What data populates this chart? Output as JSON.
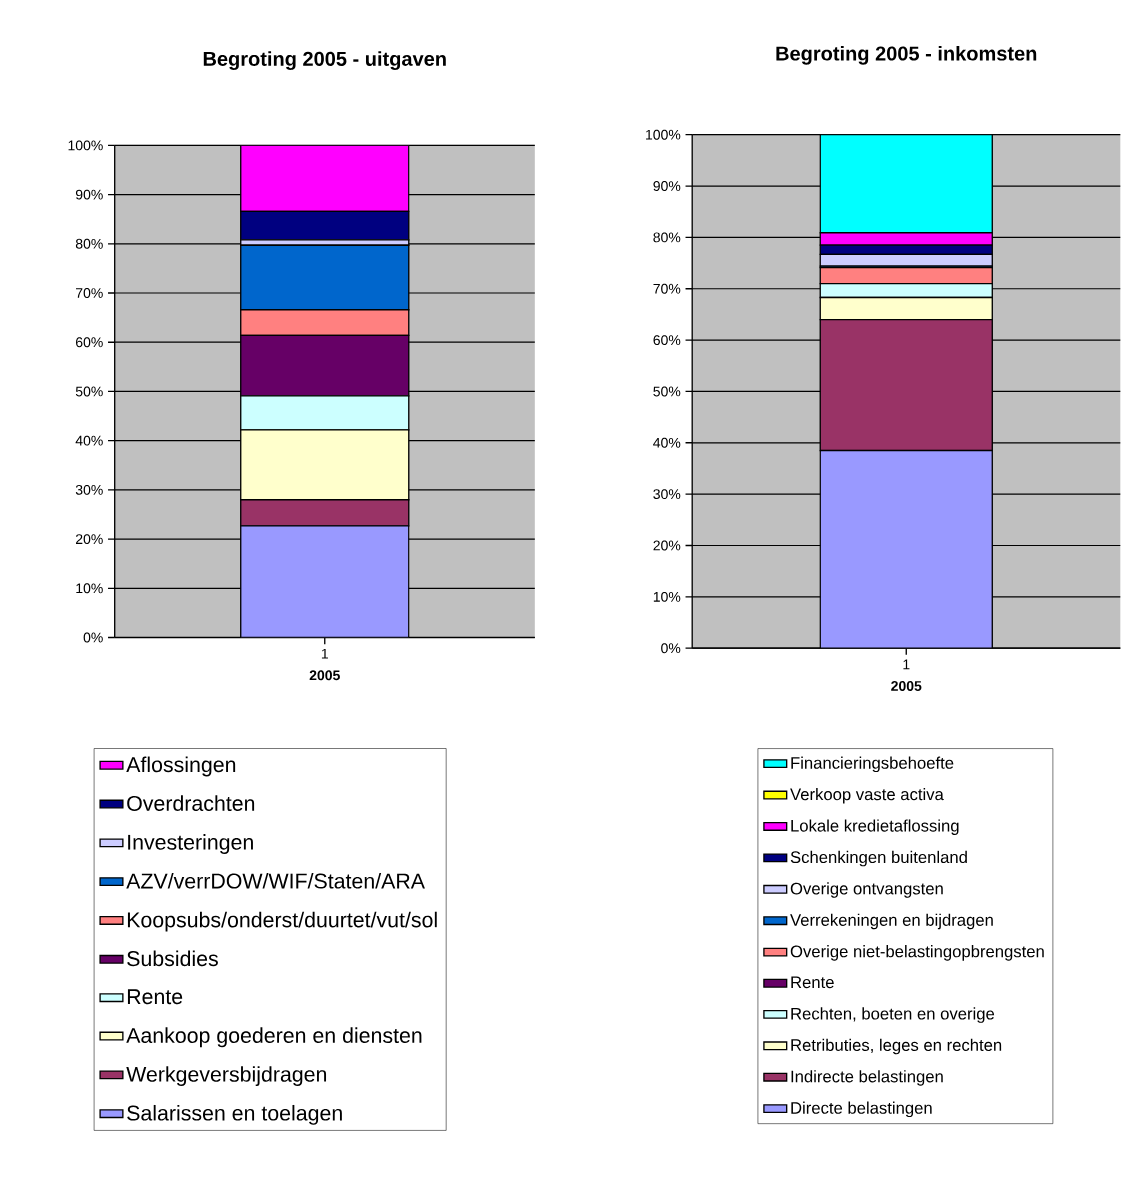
{
  "chart_data": [
    {
      "type": "bar",
      "title": "Begroting 2005 - uitgaven",
      "xlabel": "2005",
      "categories": [
        "1"
      ],
      "stacked": true,
      "grid": "y",
      "legend": "bottom",
      "ylim": [
        0,
        100
      ],
      "yticks": [
        {
          "value": 0,
          "label": "0%"
        },
        {
          "value": 10,
          "label": "10%"
        },
        {
          "value": 20,
          "label": "20%"
        },
        {
          "value": 30,
          "label": "30%"
        },
        {
          "value": 40,
          "label": "40%"
        },
        {
          "value": 50,
          "label": "50%"
        },
        {
          "value": 60,
          "label": "60%"
        },
        {
          "value": 70,
          "label": "70%"
        },
        {
          "value": 80,
          "label": "80%"
        },
        {
          "value": 90,
          "label": "90%"
        },
        {
          "value": 100,
          "label": "100%"
        }
      ],
      "series": [
        {
          "name": "Salarissen en toelagen",
          "color": "#9999ff",
          "values": [
            22.7
          ]
        },
        {
          "name": "Werkgeversbijdragen",
          "color": "#993366",
          "values": [
            5.3
          ]
        },
        {
          "name": "Aankoop goederen en diensten",
          "color": "#ffffcc",
          "values": [
            14.2
          ]
        },
        {
          "name": "Rente",
          "color": "#ccffff",
          "values": [
            6.9
          ]
        },
        {
          "name": "Subsidies",
          "color": "#660066",
          "values": [
            12.3
          ]
        },
        {
          "name": "Koopsubs/onderst/duurtet/vut/sol",
          "color": "#ff8080",
          "values": [
            5.2
          ]
        },
        {
          "name": "AZV/verrDOW/WIF/Staten/ARA",
          "color": "#0066cc",
          "values": [
            13.1
          ]
        },
        {
          "name": "Investeringen",
          "color": "#ccccff",
          "values": [
            1.1
          ]
        },
        {
          "name": "Overdrachten",
          "color": "#000080",
          "values": [
            5.8
          ]
        },
        {
          "name": "Aflossingen",
          "color": "#ff00ff",
          "values": [
            13.4
          ]
        }
      ]
    },
    {
      "type": "bar",
      "title": "Begroting 2005 - inkomsten",
      "xlabel": "2005",
      "categories": [
        "1"
      ],
      "stacked": true,
      "grid": "y",
      "legend": "bottom",
      "ylim": [
        0,
        100
      ],
      "yticks": [
        {
          "value": 0,
          "label": "0%"
        },
        {
          "value": 10,
          "label": "10%"
        },
        {
          "value": 20,
          "label": "20%"
        },
        {
          "value": 30,
          "label": "30%"
        },
        {
          "value": 40,
          "label": "40%"
        },
        {
          "value": 50,
          "label": "50%"
        },
        {
          "value": 60,
          "label": "60%"
        },
        {
          "value": 70,
          "label": "70%"
        },
        {
          "value": 80,
          "label": "80%"
        },
        {
          "value": 90,
          "label": "90%"
        },
        {
          "value": 100,
          "label": "100%"
        }
      ],
      "series": [
        {
          "name": "Directe belastingen",
          "color": "#9999ff",
          "values": [
            38.5
          ]
        },
        {
          "name": "Indirecte belastingen",
          "color": "#993366",
          "values": [
            25.5
          ]
        },
        {
          "name": "Retributies, leges en rechten",
          "color": "#ffffcc",
          "values": [
            4.3
          ]
        },
        {
          "name": "Rechten, boeten en overige",
          "color": "#ccffff",
          "values": [
            2.7
          ]
        },
        {
          "name": "Rente",
          "color": "#660066",
          "values": [
            0
          ]
        },
        {
          "name": "Overige niet-belastingopbrengsten",
          "color": "#ff8080",
          "values": [
            3.1
          ]
        },
        {
          "name": "Verrekeningen en bijdragen",
          "color": "#0066cc",
          "values": [
            0.3
          ]
        },
        {
          "name": "Overige ontvangsten",
          "color": "#ccccff",
          "values": [
            2.3
          ]
        },
        {
          "name": "Schenkingen buitenland",
          "color": "#000080",
          "values": [
            1.8
          ]
        },
        {
          "name": "Lokale  kredietaflossing",
          "color": "#ff00ff",
          "values": [
            2.4
          ]
        },
        {
          "name": "Verkoop vaste activa",
          "color": "#ffff00",
          "values": [
            0
          ]
        },
        {
          "name": "Financieringsbehoefte",
          "color": "#00ffff",
          "values": [
            19.1
          ]
        }
      ]
    }
  ]
}
